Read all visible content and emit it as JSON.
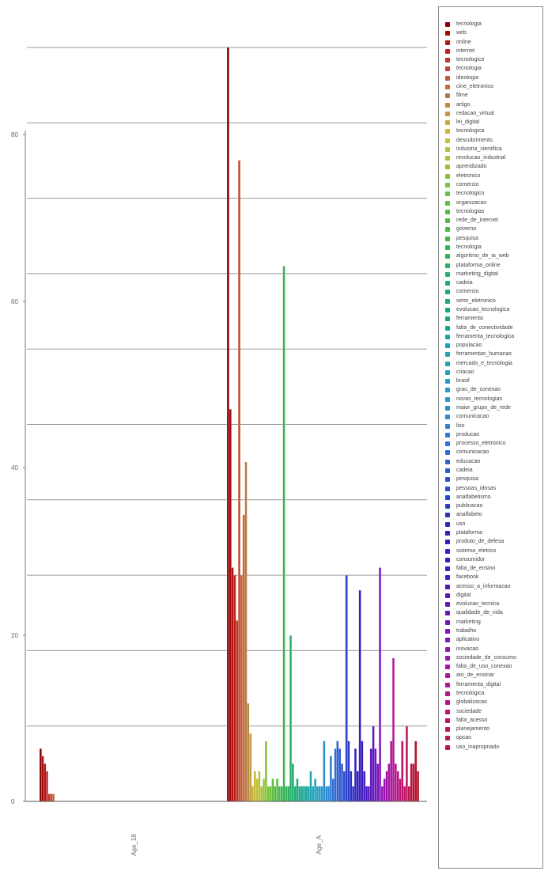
{
  "chart_data": {
    "type": "bar",
    "categories": [
      "Age_18",
      "Age_A"
    ],
    "ylim": [
      0,
      105
    ],
    "yticks": [
      0,
      20,
      40,
      60,
      80
    ],
    "legend_position": "right",
    "series": [
      {
        "name": "tecnologia",
        "color": "#8b0000",
        "values": [
          7,
          100
        ]
      },
      {
        "name": "web",
        "color": "#a10c0c",
        "values": [
          6,
          52
        ]
      },
      {
        "name": "online",
        "color": "#b31414",
        "values": [
          5,
          31
        ]
      },
      {
        "name": "internet",
        "color": "#c01f1f",
        "values": [
          4,
          30
        ]
      },
      {
        "name": "tecnologico",
        "color": "#c23326",
        "values": [
          1,
          24
        ]
      },
      {
        "name": "tecnologia",
        "color": "#c4452e",
        "values": [
          1,
          85
        ]
      },
      {
        "name": "ideologia",
        "color": "#c55a33",
        "values": [
          1,
          30
        ]
      },
      {
        "name": "cine_eletronico",
        "color": "#c06b3a",
        "values": [
          0,
          38
        ]
      },
      {
        "name": "filme",
        "color": "#b87a40",
        "values": [
          0,
          45
        ]
      },
      {
        "name": "artigo",
        "color": "#b58b45",
        "values": [
          0,
          13
        ]
      },
      {
        "name": "redacao_virtual",
        "color": "#c09a40",
        "values": [
          0,
          9
        ]
      },
      {
        "name": "lei_digital",
        "color": "#c5aa3c",
        "values": [
          0,
          2
        ]
      },
      {
        "name": "tecnologica",
        "color": "#c8b838",
        "values": [
          0,
          4
        ]
      },
      {
        "name": "descobrimento",
        "color": "#c2c036",
        "values": [
          0,
          3
        ]
      },
      {
        "name": "industria_cientifica",
        "color": "#b5c036",
        "values": [
          0,
          4
        ]
      },
      {
        "name": "revolucao_industrial",
        "color": "#a6c238",
        "values": [
          0,
          2
        ]
      },
      {
        "name": "aprendizado",
        "color": "#96c23a",
        "values": [
          0,
          3
        ]
      },
      {
        "name": "eletronico",
        "color": "#86c23c",
        "values": [
          0,
          8
        ]
      },
      {
        "name": "comercio",
        "color": "#78c23e",
        "values": [
          0,
          2
        ]
      },
      {
        "name": "tecnologico",
        "color": "#6cc040",
        "values": [
          0,
          2
        ]
      },
      {
        "name": "organizacao",
        "color": "#62bc42",
        "values": [
          0,
          3
        ]
      },
      {
        "name": "tecnologias",
        "color": "#58ba44",
        "values": [
          0,
          2
        ]
      },
      {
        "name": "rede_de_internet",
        "color": "#4fba46",
        "values": [
          0,
          3
        ]
      },
      {
        "name": "governo",
        "color": "#46b84a",
        "values": [
          0,
          2
        ]
      },
      {
        "name": "pesquisa",
        "color": "#3db64e",
        "values": [
          0,
          2
        ]
      },
      {
        "name": "tecnologia",
        "color": "#36b452",
        "values": [
          0,
          71
        ]
      },
      {
        "name": "algoritmo_de_ia_web",
        "color": "#2fb258",
        "values": [
          0,
          2
        ]
      },
      {
        "name": "plataforma_online",
        "color": "#2ab060",
        "values": [
          0,
          2
        ]
      },
      {
        "name": "marketing_digital",
        "color": "#26ae68",
        "values": [
          0,
          22
        ]
      },
      {
        "name": "cadeia",
        "color": "#22ac70",
        "values": [
          0,
          5
        ]
      },
      {
        "name": "comercio",
        "color": "#1eaa78",
        "values": [
          0,
          2
        ]
      },
      {
        "name": "setor_eletronico",
        "color": "#1aa880",
        "values": [
          0,
          3
        ]
      },
      {
        "name": "evolucao_tecnologica",
        "color": "#18a688",
        "values": [
          0,
          2
        ]
      },
      {
        "name": "ferramenta",
        "color": "#18a490",
        "values": [
          0,
          2
        ]
      },
      {
        "name": "falta_de_conectividade",
        "color": "#18a498",
        "values": [
          0,
          2
        ]
      },
      {
        "name": "ferramenta_tecnologica",
        "color": "#1aa4a0",
        "values": [
          0,
          2
        ]
      },
      {
        "name": "populacao",
        "color": "#1ca4a8",
        "values": [
          0,
          2
        ]
      },
      {
        "name": "ferramentas_humanas",
        "color": "#1ea4b0",
        "values": [
          0,
          4
        ]
      },
      {
        "name": "mercado_e_tecnologia",
        "color": "#20a2b8",
        "values": [
          0,
          2
        ]
      },
      {
        "name": "criacao",
        "color": "#22a0be",
        "values": [
          0,
          3
        ]
      },
      {
        "name": "brasil",
        "color": "#249ec4",
        "values": [
          0,
          2
        ]
      },
      {
        "name": "grau_de_conexao",
        "color": "#269ac8",
        "values": [
          0,
          2
        ]
      },
      {
        "name": "novas_tecnologias",
        "color": "#2896cc",
        "values": [
          0,
          2
        ]
      },
      {
        "name": "maior_grupo_de_rede",
        "color": "#2a90d0",
        "values": [
          0,
          8
        ]
      },
      {
        "name": "comunicacao",
        "color": "#2c8ad2",
        "values": [
          0,
          2
        ]
      },
      {
        "name": "lixo",
        "color": "#2e82d4",
        "values": [
          0,
          2
        ]
      },
      {
        "name": "producao",
        "color": "#2f7ad4",
        "values": [
          0,
          6
        ]
      },
      {
        "name": "processo_eletronico",
        "color": "#3072d4",
        "values": [
          0,
          3
        ]
      },
      {
        "name": "comunicacao",
        "color": "#306ad2",
        "values": [
          0,
          7
        ]
      },
      {
        "name": "educacao",
        "color": "#3062d0",
        "values": [
          0,
          8
        ]
      },
      {
        "name": "cadeia",
        "color": "#305ace",
        "values": [
          0,
          7
        ]
      },
      {
        "name": "pesquisa",
        "color": "#2f52cc",
        "values": [
          0,
          5
        ]
      },
      {
        "name": "pessoas_idosas",
        "color": "#2e4aca",
        "values": [
          0,
          4
        ]
      },
      {
        "name": "analfabetismo",
        "color": "#2d42c8",
        "values": [
          0,
          30
        ]
      },
      {
        "name": "publicacao",
        "color": "#2c3ac6",
        "values": [
          0,
          8
        ]
      },
      {
        "name": "analfabeto",
        "color": "#2b32c4",
        "values": [
          0,
          4
        ]
      },
      {
        "name": "uso",
        "color": "#2a2ac2",
        "values": [
          0,
          2
        ]
      },
      {
        "name": "plataforma",
        "color": "#2c22c2",
        "values": [
          0,
          7
        ]
      },
      {
        "name": "produto_de_defesa",
        "color": "#3020c0",
        "values": [
          0,
          4
        ]
      },
      {
        "name": "sistema_eletrico",
        "color": "#361ec0",
        "values": [
          0,
          28
        ]
      },
      {
        "name": "consumidor",
        "color": "#3c1cbe",
        "values": [
          0,
          8
        ]
      },
      {
        "name": "falta_de_ensino",
        "color": "#421abe",
        "values": [
          0,
          4
        ]
      },
      {
        "name": "facebook",
        "color": "#4a18be",
        "values": [
          0,
          2
        ]
      },
      {
        "name": "acesso_a_informacao",
        "color": "#5216be",
        "values": [
          0,
          2
        ]
      },
      {
        "name": "digital",
        "color": "#5a16be",
        "values": [
          0,
          7
        ]
      },
      {
        "name": "evolucao_tecnica",
        "color": "#6414be",
        "values": [
          0,
          10
        ]
      },
      {
        "name": "qualidade_de_vida",
        "color": "#6e14bc",
        "values": [
          0,
          7
        ]
      },
      {
        "name": "marketing",
        "color": "#7814ba",
        "values": [
          0,
          5
        ]
      },
      {
        "name": "trabalho",
        "color": "#8214b8",
        "values": [
          0,
          31
        ]
      },
      {
        "name": "aplicativo",
        "color": "#8c14b4",
        "values": [
          0,
          2
        ]
      },
      {
        "name": "inovacao",
        "color": "#9614b0",
        "values": [
          0,
          3
        ]
      },
      {
        "name": "sociedade_de_consumo",
        "color": "#9e14aa",
        "values": [
          0,
          4
        ]
      },
      {
        "name": "falta_de_uso_conexao",
        "color": "#a614a4",
        "values": [
          0,
          5
        ]
      },
      {
        "name": "ato_de_ensinar",
        "color": "#ad149c",
        "values": [
          0,
          8
        ]
      },
      {
        "name": "ferramenta_digital",
        "color": "#b21494",
        "values": [
          0,
          19
        ]
      },
      {
        "name": "tecnologica",
        "color": "#b6148a",
        "values": [
          0,
          5
        ]
      },
      {
        "name": "globalizacao",
        "color": "#b81480",
        "values": [
          0,
          4
        ]
      },
      {
        "name": "sociedade",
        "color": "#ba1476",
        "values": [
          0,
          3
        ]
      },
      {
        "name": "falta_acesso",
        "color": "#bc146c",
        "values": [
          0,
          8
        ]
      },
      {
        "name": "planejamento",
        "color": "#bc1462",
        "values": [
          0,
          2
        ]
      },
      {
        "name": "opcao",
        "color": "#bc1458",
        "values": [
          0,
          10
        ]
      },
      {
        "name": "uso_inapropriado",
        "color": "#bb144e",
        "values": [
          0,
          2
        ]
      },
      {
        "name": "",
        "color": "#b91444",
        "values": [
          0,
          5
        ]
      },
      {
        "name": "",
        "color": "#b7143a",
        "values": [
          0,
          5
        ]
      },
      {
        "name": "",
        "color": "#b51430",
        "values": [
          0,
          8
        ]
      },
      {
        "name": "",
        "color": "#b31426",
        "values": [
          0,
          4
        ]
      }
    ]
  }
}
